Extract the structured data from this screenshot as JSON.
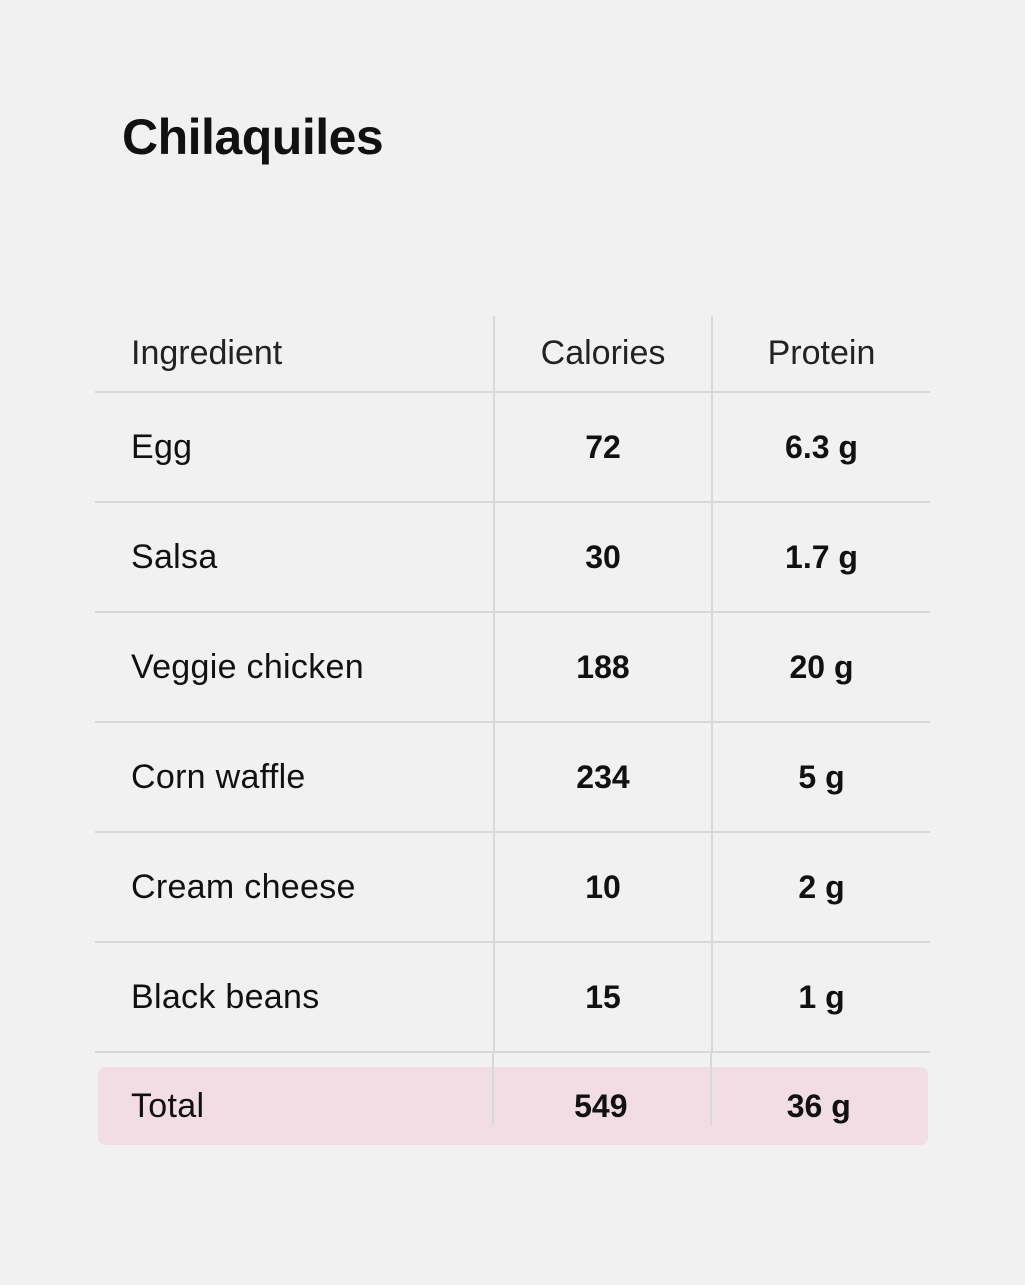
{
  "title": "Chilaquiles",
  "table": {
    "headers": [
      "Ingredient",
      "Calories",
      "Protein"
    ],
    "rows": [
      [
        "Egg",
        "72",
        "6.3 g"
      ],
      [
        "Salsa",
        "30",
        "1.7 g"
      ],
      [
        "Veggie chicken",
        "188",
        "20 g"
      ],
      [
        "Corn waffle",
        "234",
        "5 g"
      ],
      [
        "Cream cheese",
        "10",
        "2 g"
      ],
      [
        "Black beans",
        "15",
        "1 g"
      ]
    ],
    "total": [
      "Total",
      "549",
      "36 g"
    ]
  },
  "colors": {
    "background": "#f1f1f1",
    "total_highlight": "#f2dde4",
    "divider": "#d8d8d8"
  }
}
